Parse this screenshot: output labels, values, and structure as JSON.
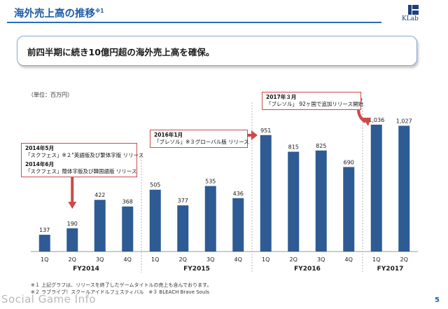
{
  "header": {
    "title": "海外売上高の推移",
    "title_note": "※1",
    "logo_text": "KLab"
  },
  "headline": "前四半期に続き10億円超の海外売上高を確保。",
  "unit_label": "（単位：百万円）",
  "callouts": [
    {
      "date": "2014年5月",
      "text": "「スクフェス」※２\"英語版及び繁体字版 リリース"
    },
    {
      "date": "2014年6月",
      "text": "「スクフェス」簡体字版及び韓国語版 リリース"
    },
    {
      "date": "2016年1月",
      "text": "「ブレソル」※３グローバル版 リリース"
    },
    {
      "date": "2017年３月",
      "text": "「ブレソル」 92ヶ国で追加リリース開始"
    }
  ],
  "notes": [
    "※１ 上記グラフは、リリースを終了したゲームタイトルの売上も含んでおります。",
    "※２ ラブライブ！スクールアイドルフェスティバル　※３ BLEACH Brave Souls"
  ],
  "watermark": "Social Game Info",
  "page_number": "5",
  "colors": {
    "bar": "#2e5b94",
    "accent": "#cc4a4a",
    "title": "#1f5ea8",
    "axis": "#9a9a9a"
  },
  "chart_data": {
    "type": "bar",
    "categories": [
      "1Q",
      "2Q",
      "3Q",
      "4Q",
      "1Q",
      "2Q",
      "3Q",
      "4Q",
      "1Q",
      "2Q",
      "3Q",
      "4Q",
      "1Q",
      "2Q"
    ],
    "groups": [
      {
        "label": "FY2014",
        "count": 4
      },
      {
        "label": "FY2015",
        "count": 4
      },
      {
        "label": "FY2016",
        "count": 4
      },
      {
        "label": "FY2017",
        "count": 2
      }
    ],
    "values": [
      137,
      190,
      422,
      368,
      505,
      377,
      535,
      436,
      951,
      815,
      825,
      690,
      1036,
      1027
    ],
    "value_labels": [
      "137",
      "190",
      "422",
      "368",
      "505",
      "377",
      "535",
      "436",
      "951",
      "815",
      "825",
      "690",
      "1,036",
      "1,027"
    ],
    "ylim": [
      0,
      1150
    ],
    "grid": false
  }
}
